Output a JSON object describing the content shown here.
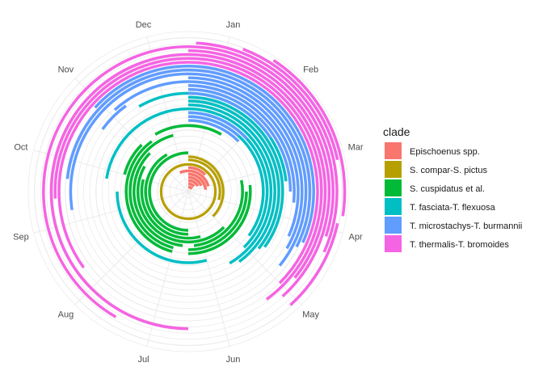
{
  "chart_data": {
    "type": "polar-bar",
    "months": [
      "Jan",
      "Feb",
      "Mar",
      "Apr",
      "May",
      "Jun",
      "Jul",
      "Aug",
      "Sep",
      "Oct",
      "Nov",
      "Dec"
    ],
    "legend": {
      "title": "clade",
      "position": "right",
      "entries": [
        {
          "name": "Epischoenus spp.",
          "color": "#F8766D"
        },
        {
          "name": "S. compar-S. pictus",
          "color": "#B79F00"
        },
        {
          "name": "S. cuspidatus et al.",
          "color": "#00BA38"
        },
        {
          "name": "T. fasciata-T. flexuosa",
          "color": "#00BFC4"
        },
        {
          "name": "T. microstachys-T. burmannii",
          "color": "#619CFF"
        },
        {
          "name": "T. thermalis-T. bromoides",
          "color": "#F564E3"
        }
      ]
    },
    "grid": true,
    "bands": [
      {
        "clade": "Epischoenus spp.",
        "r": 0.035,
        "start": 0.0,
        "end": 1.8,
        "w": 0.022
      },
      {
        "clade": "Epischoenus spp.",
        "r": 0.06,
        "start": 0.0,
        "end": 1.6,
        "w": 0.022
      },
      {
        "clade": "Epischoenus spp.",
        "r": 0.085,
        "start": 0.0,
        "end": 2.0,
        "w": 0.022
      },
      {
        "clade": "Epischoenus spp.",
        "r": 0.11,
        "start": 0.0,
        "end": 2.2,
        "w": 0.022
      },
      {
        "clade": "Epischoenus spp.",
        "r": 0.135,
        "start": 0.0,
        "end": 2.8,
        "w": 0.022
      },
      {
        "clade": "Epischoenus spp.",
        "r": 0.16,
        "start": 11.2,
        "end": 12.0,
        "w": 0.022
      },
      {
        "clade": "Epischoenus spp.",
        "r": 0.16,
        "start": 0.0,
        "end": 2.5,
        "w": 0.022
      },
      {
        "clade": "Epischoenus spp.",
        "r": 0.185,
        "start": 0.0,
        "end": 1.5,
        "w": 0.022
      },
      {
        "clade": "S. compar-S. pictus",
        "r": 0.21,
        "start": 0.0,
        "end": 12.0,
        "w": 0.02
      },
      {
        "clade": "S. compar-S. pictus",
        "r": 0.245,
        "start": 0.0,
        "end": 3.5,
        "w": 0.02
      },
      {
        "clade": "S. compar-S. pictus",
        "r": 0.27,
        "start": 0.0,
        "end": 4.5,
        "w": 0.02
      },
      {
        "clade": "S. cuspidatus et al.",
        "r": 0.3,
        "start": 6.0,
        "end": 12.0,
        "w": 0.022
      },
      {
        "clade": "S. cuspidatus et al.",
        "r": 0.33,
        "start": 6.0,
        "end": 11.0,
        "w": 0.022
      },
      {
        "clade": "S. cuspidatus et al.",
        "r": 0.36,
        "start": 5.5,
        "end": 9.5,
        "w": 0.022
      },
      {
        "clade": "S. cuspidatus et al.",
        "r": 0.39,
        "start": 4.5,
        "end": 10.0,
        "w": 0.022
      },
      {
        "clade": "S. cuspidatus et al.",
        "r": 0.42,
        "start": 2.6,
        "end": 5.8,
        "w": 0.022
      },
      {
        "clade": "S. cuspidatus et al.",
        "r": 0.42,
        "start": 6.2,
        "end": 10.5,
        "w": 0.022
      },
      {
        "clade": "S. cuspidatus et al.",
        "r": 0.45,
        "start": 3.0,
        "end": 6.0,
        "w": 0.022
      },
      {
        "clade": "S. cuspidatus et al.",
        "r": 0.45,
        "start": 6.5,
        "end": 11.5,
        "w": 0.022
      },
      {
        "clade": "S. cuspidatus et al.",
        "r": 0.48,
        "start": 2.8,
        "end": 6.0,
        "w": 0.022
      },
      {
        "clade": "S. cuspidatus et al.",
        "r": 0.48,
        "start": 6.5,
        "end": 10.8,
        "w": 0.022
      },
      {
        "clade": "S. cuspidatus et al.",
        "r": 0.51,
        "start": 11.0,
        "end": 12.0,
        "w": 0.022
      },
      {
        "clade": "S. cuspidatus et al.",
        "r": 0.51,
        "start": 0.0,
        "end": 1.0,
        "w": 0.022
      },
      {
        "clade": "S. cuspidatus et al.",
        "r": 0.51,
        "start": 9.5,
        "end": 10.5,
        "w": 0.022
      },
      {
        "clade": "T. fasciata-T. flexuosa",
        "r": 0.55,
        "start": 5.5,
        "end": 9.0,
        "w": 0.022
      },
      {
        "clade": "T. fasciata-T. flexuosa",
        "r": 0.58,
        "start": 0.0,
        "end": 4.2,
        "w": 0.022
      },
      {
        "clade": "T. fasciata-T. flexuosa",
        "r": 0.61,
        "start": 0.0,
        "end": 4.5,
        "w": 0.022
      },
      {
        "clade": "T. fasciata-T. flexuosa",
        "r": 0.64,
        "start": 0.0,
        "end": 5.0,
        "w": 0.022
      },
      {
        "clade": "T. fasciata-T. flexuosa",
        "r": 0.64,
        "start": 9.3,
        "end": 12.0,
        "w": 0.022
      },
      {
        "clade": "T. fasciata-T. flexuosa",
        "r": 0.67,
        "start": 0.0,
        "end": 4.8,
        "w": 0.022
      },
      {
        "clade": "T. fasciata-T. flexuosa",
        "r": 0.7,
        "start": 0.0,
        "end": 4.3,
        "w": 0.022
      },
      {
        "clade": "T. fasciata-T. flexuosa",
        "r": 0.73,
        "start": 0.0,
        "end": 4.2,
        "w": 0.022
      },
      {
        "clade": "T. fasciata-T. flexuosa",
        "r": 0.76,
        "start": 0.0,
        "end": 2.8,
        "w": 0.022
      },
      {
        "clade": "T. fasciata-T. flexuosa",
        "r": 0.76,
        "start": 11.0,
        "end": 12.0,
        "w": 0.022
      },
      {
        "clade": "T. microstachys-T. burmannii",
        "r": 0.55,
        "start": 0.0,
        "end": 1.5,
        "w": 0.022
      },
      {
        "clade": "T. microstachys-T. burmannii",
        "r": 0.58,
        "start": 0.0,
        "end": 1.4,
        "w": 0.022
      },
      {
        "clade": "T. microstachys-T. burmannii",
        "r": 0.61,
        "start": 0.0,
        "end": 1.6,
        "w": 0.022
      },
      {
        "clade": "T. microstachys-T. burmannii",
        "r": 0.76,
        "start": 0.0,
        "end": 1.9,
        "w": 0.022
      },
      {
        "clade": "T. microstachys-T. burmannii",
        "r": 0.79,
        "start": 0.0,
        "end": 3.0,
        "w": 0.022
      },
      {
        "clade": "T. microstachys-T. burmannii",
        "r": 0.82,
        "start": 0.0,
        "end": 3.2,
        "w": 0.022
      },
      {
        "clade": "T. microstachys-T. burmannii",
        "r": 0.82,
        "start": 10.2,
        "end": 10.8,
        "w": 0.022
      },
      {
        "clade": "T. microstachys-T. burmannii",
        "r": 0.85,
        "start": 0.0,
        "end": 3.8,
        "w": 0.022
      },
      {
        "clade": "T. microstachys-T. burmannii",
        "r": 0.85,
        "start": 10.6,
        "end": 12.0,
        "w": 0.022
      },
      {
        "clade": "T. microstachys-T. burmannii",
        "r": 0.88,
        "start": 0.0,
        "end": 4.0,
        "w": 0.022
      },
      {
        "clade": "T. microstachys-T. burmannii",
        "r": 0.91,
        "start": 0.0,
        "end": 4.3,
        "w": 0.022
      },
      {
        "clade": "T. microstachys-T. burmannii",
        "r": 0.91,
        "start": 8.7,
        "end": 12.0,
        "w": 0.022
      },
      {
        "clade": "T. microstachys-T. burmannii",
        "r": 0.94,
        "start": 0.0,
        "end": 3.9,
        "w": 0.022
      },
      {
        "clade": "T. microstachys-T. burmannii",
        "r": 0.94,
        "start": 9.2,
        "end": 12.0,
        "w": 0.022
      },
      {
        "clade": "T. microstachys-T. burmannii",
        "r": 0.97,
        "start": 0.0,
        "end": 3.8,
        "w": 0.022
      },
      {
        "clade": "T. microstachys-T. burmannii",
        "r": 0.97,
        "start": 10.4,
        "end": 12.0,
        "w": 0.022
      },
      {
        "clade": "T. thermalis-T. bromoides",
        "r": 1.0,
        "start": 0.0,
        "end": 4.5,
        "w": 0.022
      },
      {
        "clade": "T. thermalis-T. bromoides",
        "r": 1.0,
        "start": 7.8,
        "end": 12.0,
        "w": 0.022
      },
      {
        "clade": "T. thermalis-T. bromoides",
        "r": 1.03,
        "start": 0.0,
        "end": 4.8,
        "w": 0.022
      },
      {
        "clade": "T. thermalis-T. bromoides",
        "r": 1.03,
        "start": 8.9,
        "end": 12.0,
        "w": 0.022
      },
      {
        "clade": "T. thermalis-T. bromoides",
        "r": 1.06,
        "start": 0.0,
        "end": 4.3,
        "w": 0.022
      },
      {
        "clade": "T. thermalis-T. bromoides",
        "r": 1.06,
        "start": 6.0,
        "end": 12.0,
        "w": 0.022
      },
      {
        "clade": "T. thermalis-T. bromoides",
        "r": 1.09,
        "start": 0.0,
        "end": 4.6,
        "w": 0.022
      },
      {
        "clade": "T. thermalis-T. bromoides",
        "r": 1.12,
        "start": 0.0,
        "end": 3.6,
        "w": 0.022
      },
      {
        "clade": "T. thermalis-T. bromoides",
        "r": 1.12,
        "start": 7.0,
        "end": 12.0,
        "w": 0.022
      },
      {
        "clade": "T. thermalis-T. bromoides",
        "r": 1.15,
        "start": 0.1,
        "end": 3.8,
        "w": 0.022
      },
      {
        "clade": "T. thermalis-T. bromoides",
        "r": 1.18,
        "start": 0.7,
        "end": 2.6,
        "w": 0.022
      },
      {
        "clade": "T. thermalis-T. bromoides",
        "r": 1.18,
        "start": 3.4,
        "end": 4.6,
        "w": 0.022
      },
      {
        "clade": "T. thermalis-T. bromoides",
        "r": 1.21,
        "start": 1.1,
        "end": 3.3,
        "w": 0.022
      }
    ]
  }
}
